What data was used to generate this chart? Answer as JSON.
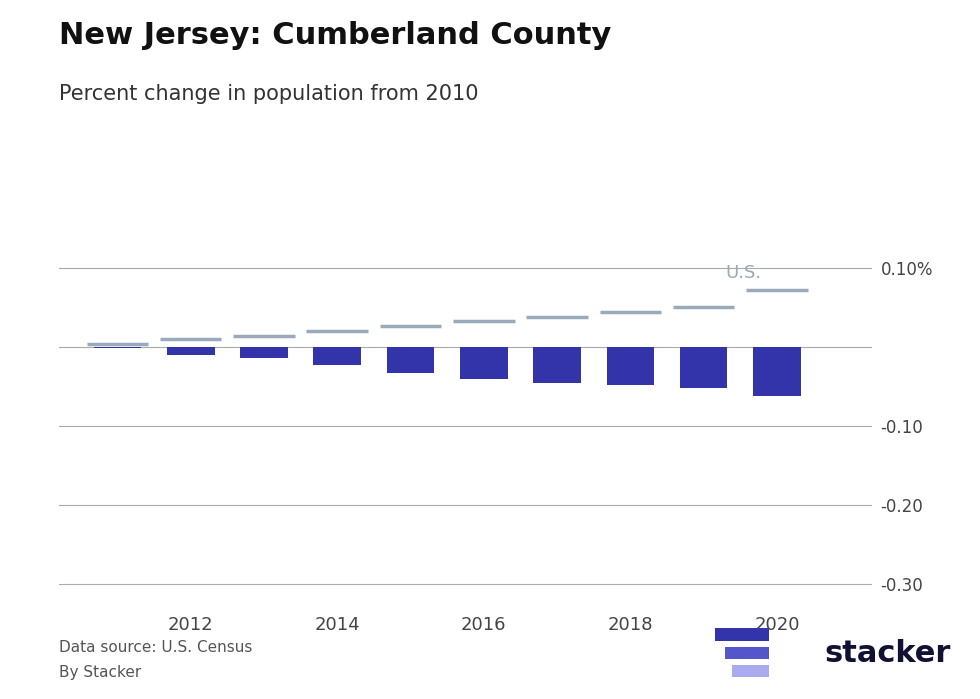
{
  "title": "New Jersey: Cumberland County",
  "subtitle": "Percent change in population from 2010",
  "title_fontsize": 22,
  "subtitle_fontsize": 15,
  "background_color": "#ffffff",
  "bar_color": "#3333aa",
  "us_line_color": "#99aabb",
  "us_label": "U.S.",
  "us_label_color": "#99aabb",
  "years": [
    2011,
    2012,
    2013,
    2014,
    2015,
    2016,
    2017,
    2018,
    2019,
    2020
  ],
  "county_values": [
    -0.001,
    -0.01,
    -0.013,
    -0.022,
    -0.032,
    -0.04,
    -0.045,
    -0.047,
    -0.052,
    -0.0617
  ],
  "us_values": [
    0.004,
    0.01,
    0.015,
    0.021,
    0.027,
    0.033,
    0.039,
    0.045,
    0.051,
    0.073
  ],
  "ylim": [
    -0.33,
    0.13
  ],
  "yticks": [
    0.1,
    0.0,
    -0.1,
    -0.2,
    -0.3
  ],
  "ytick_labels": [
    "0.10%",
    "",
    "-0.10",
    "-0.20",
    "-0.30"
  ],
  "xticks": [
    2012,
    2014,
    2016,
    2018,
    2020
  ],
  "footnote1": "Data source: U.S. Census",
  "footnote2": "By Stacker",
  "stacker_text_color": "#111133",
  "stacker_bar1_color": "#3333aa",
  "stacker_bar2_color": "#5555cc",
  "stacker_bar3_color": "#aaaaee"
}
